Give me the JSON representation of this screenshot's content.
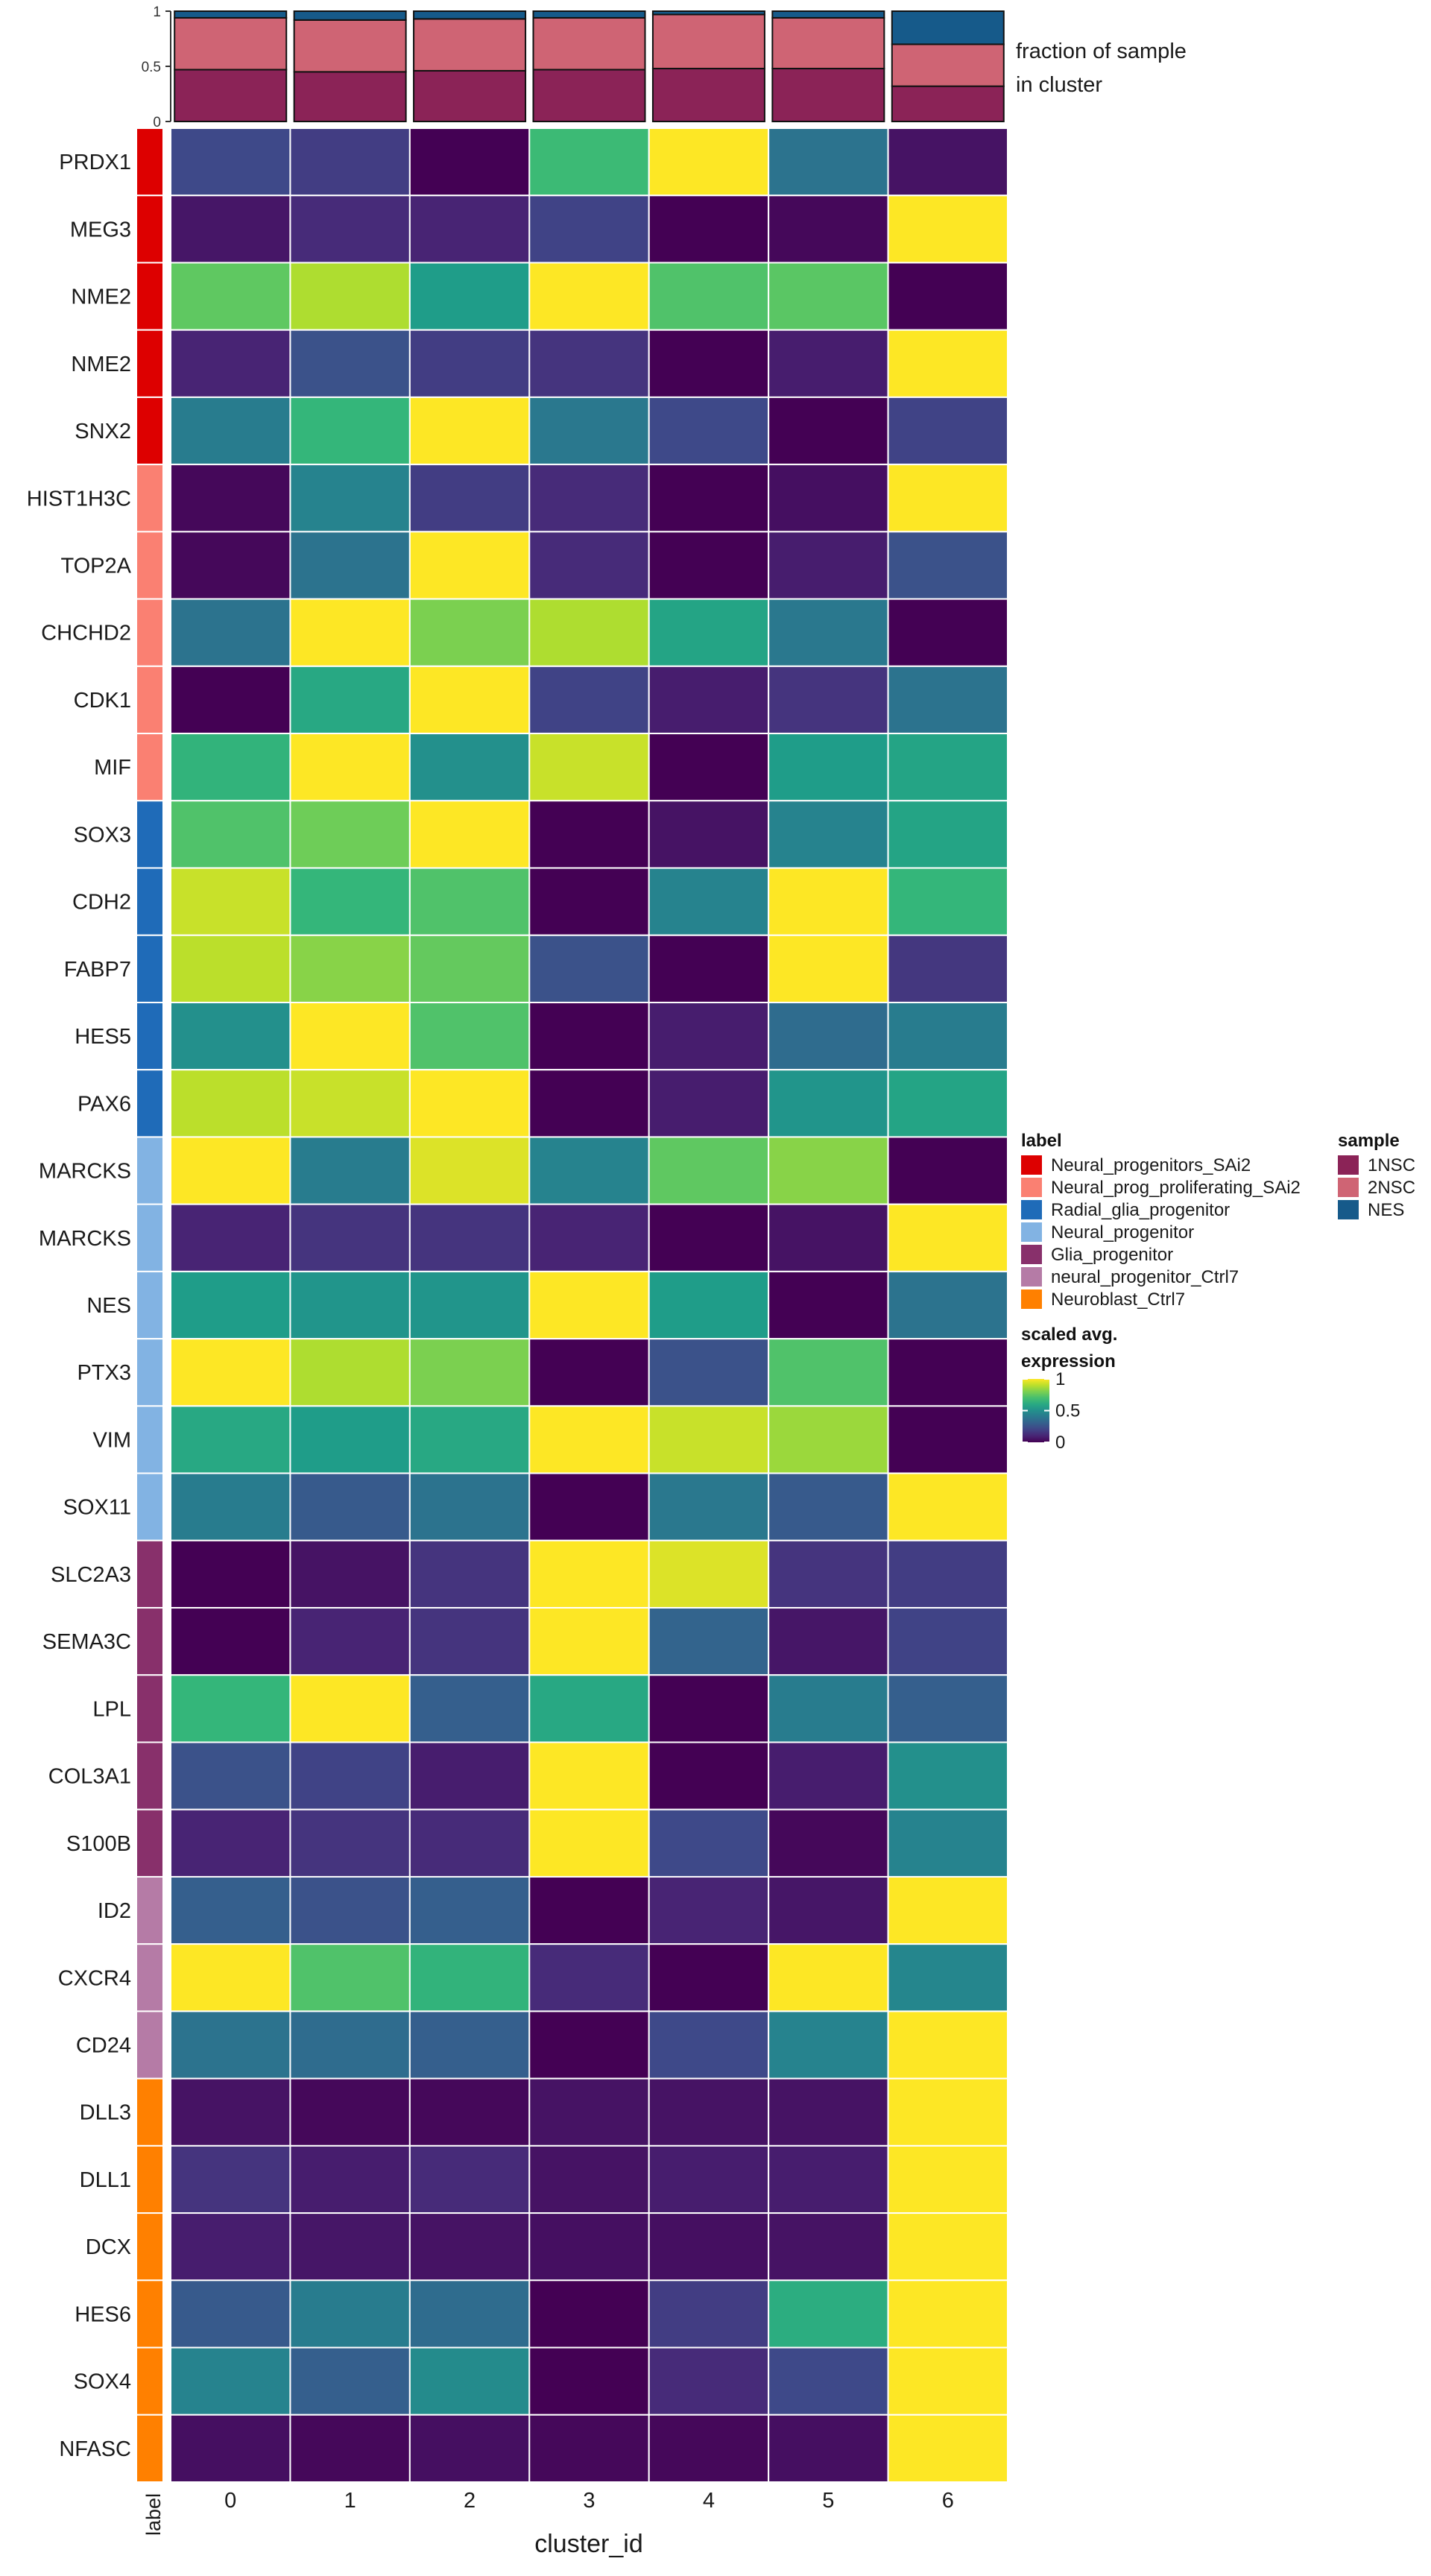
{
  "chart_data": {
    "type": "heatmap",
    "title": "",
    "xlabel": "cluster_id",
    "label_axis_title": "label",
    "clusters": [
      "0",
      "1",
      "2",
      "3",
      "4",
      "5",
      "6"
    ],
    "rows": [
      {
        "gene": "PRDX1",
        "group": 0,
        "values": [
          0.22,
          0.18,
          0.0,
          0.68,
          1.0,
          0.38,
          0.05
        ]
      },
      {
        "gene": "MEG3",
        "group": 0,
        "values": [
          0.06,
          0.12,
          0.1,
          0.2,
          0.0,
          0.02,
          1.0
        ]
      },
      {
        "gene": "NME2",
        "group": 0,
        "values": [
          0.75,
          0.88,
          0.55,
          1.0,
          0.72,
          0.74,
          0.0
        ]
      },
      {
        "gene": "NME2",
        "group": 0,
        "values": [
          0.1,
          0.25,
          0.18,
          0.15,
          0.0,
          0.08,
          1.0
        ]
      },
      {
        "gene": "SNX2",
        "group": 0,
        "values": [
          0.42,
          0.66,
          1.0,
          0.4,
          0.22,
          0.0,
          0.2
        ]
      },
      {
        "gene": "HIST1H3C",
        "group": 1,
        "values": [
          0.02,
          0.45,
          0.18,
          0.12,
          0.0,
          0.04,
          1.0
        ]
      },
      {
        "gene": "TOP2A",
        "group": 1,
        "values": [
          0.02,
          0.38,
          1.0,
          0.12,
          0.0,
          0.08,
          0.25
        ]
      },
      {
        "gene": "CHCHD2",
        "group": 1,
        "values": [
          0.38,
          1.0,
          0.8,
          0.88,
          0.58,
          0.4,
          0.0
        ]
      },
      {
        "gene": "CDK1",
        "group": 1,
        "values": [
          0.0,
          0.6,
          1.0,
          0.2,
          0.08,
          0.15,
          0.38
        ]
      },
      {
        "gene": "MIF",
        "group": 1,
        "values": [
          0.65,
          1.0,
          0.5,
          0.92,
          0.0,
          0.55,
          0.58
        ]
      },
      {
        "gene": "SOX3",
        "group": 2,
        "values": [
          0.72,
          0.78,
          1.0,
          0.0,
          0.05,
          0.45,
          0.58
        ]
      },
      {
        "gene": "CDH2",
        "group": 2,
        "values": [
          0.92,
          0.66,
          0.72,
          0.0,
          0.45,
          1.0,
          0.66
        ]
      },
      {
        "gene": "FABP7",
        "group": 2,
        "values": [
          0.9,
          0.82,
          0.76,
          0.25,
          0.0,
          1.0,
          0.16
        ]
      },
      {
        "gene": "HES5",
        "group": 2,
        "values": [
          0.5,
          1.0,
          0.72,
          0.0,
          0.08,
          0.35,
          0.42
        ]
      },
      {
        "gene": "PAX6",
        "group": 2,
        "values": [
          0.9,
          0.92,
          1.0,
          0.0,
          0.08,
          0.52,
          0.58
        ]
      },
      {
        "gene": "MARCKS",
        "group": 3,
        "values": [
          1.0,
          0.42,
          0.95,
          0.45,
          0.75,
          0.82,
          0.0
        ]
      },
      {
        "gene": "MARCKS",
        "group": 3,
        "values": [
          0.1,
          0.15,
          0.15,
          0.1,
          0.0,
          0.05,
          1.0
        ]
      },
      {
        "gene": "NES",
        "group": 3,
        "values": [
          0.55,
          0.52,
          0.52,
          1.0,
          0.55,
          0.0,
          0.38
        ]
      },
      {
        "gene": "PTX3",
        "group": 3,
        "values": [
          1.0,
          0.88,
          0.8,
          0.0,
          0.25,
          0.72,
          0.0
        ]
      },
      {
        "gene": "VIM",
        "group": 3,
        "values": [
          0.6,
          0.55,
          0.6,
          1.0,
          0.92,
          0.85,
          0.0
        ]
      },
      {
        "gene": "SOX11",
        "group": 3,
        "values": [
          0.42,
          0.28,
          0.38,
          0.0,
          0.4,
          0.28,
          1.0
        ]
      },
      {
        "gene": "SLC2A3",
        "group": 4,
        "values": [
          0.0,
          0.05,
          0.15,
          1.0,
          0.95,
          0.15,
          0.18
        ]
      },
      {
        "gene": "SEMA3C",
        "group": 4,
        "values": [
          0.0,
          0.1,
          0.15,
          1.0,
          0.32,
          0.06,
          0.2
        ]
      },
      {
        "gene": "LPL",
        "group": 4,
        "values": [
          0.66,
          1.0,
          0.3,
          0.6,
          0.0,
          0.42,
          0.3
        ]
      },
      {
        "gene": "COL3A1",
        "group": 4,
        "values": [
          0.25,
          0.2,
          0.08,
          1.0,
          0.0,
          0.08,
          0.5
        ]
      },
      {
        "gene": "S100B",
        "group": 4,
        "values": [
          0.1,
          0.15,
          0.12,
          1.0,
          0.22,
          0.02,
          0.45
        ]
      },
      {
        "gene": "ID2",
        "group": 5,
        "values": [
          0.3,
          0.25,
          0.3,
          0.0,
          0.1,
          0.06,
          1.0
        ]
      },
      {
        "gene": "CXCR4",
        "group": 5,
        "values": [
          1.0,
          0.72,
          0.65,
          0.12,
          0.0,
          1.0,
          0.46
        ]
      },
      {
        "gene": "CD24",
        "group": 5,
        "values": [
          0.38,
          0.35,
          0.3,
          0.0,
          0.22,
          0.45,
          1.0
        ]
      },
      {
        "gene": "DLL3",
        "group": 6,
        "values": [
          0.05,
          0.02,
          0.02,
          0.05,
          0.05,
          0.05,
          1.0
        ]
      },
      {
        "gene": "DLL1",
        "group": 6,
        "values": [
          0.15,
          0.08,
          0.12,
          0.05,
          0.08,
          0.08,
          1.0
        ]
      },
      {
        "gene": "DCX",
        "group": 6,
        "values": [
          0.08,
          0.06,
          0.05,
          0.04,
          0.04,
          0.05,
          1.0
        ]
      },
      {
        "gene": "HES6",
        "group": 6,
        "values": [
          0.28,
          0.42,
          0.35,
          0.0,
          0.18,
          0.62,
          1.0
        ]
      },
      {
        "gene": "SOX4",
        "group": 6,
        "values": [
          0.45,
          0.3,
          0.48,
          0.0,
          0.12,
          0.22,
          1.0
        ]
      },
      {
        "gene": "NFASC",
        "group": 6,
        "values": [
          0.04,
          0.02,
          0.04,
          0.02,
          0.02,
          0.04,
          1.0
        ]
      }
    ],
    "label_legend": {
      "title": "label",
      "entries": [
        {
          "name": "Neural_progenitors_SAi2",
          "color": "#dd0000"
        },
        {
          "name": "Neural_prog_proliferating_SAi2",
          "color": "#fa8072"
        },
        {
          "name": "Radial_glia_progenitor",
          "color": "#1f6bb8"
        },
        {
          "name": "Neural_progenitor",
          "color": "#82b3e3"
        },
        {
          "name": "Glia_progenitor",
          "color": "#88306b"
        },
        {
          "name": "neural_progenitor_Ctrl7",
          "color": "#b57ba6"
        },
        {
          "name": "Neuroblast_Ctrl7",
          "color": "#ff8000"
        }
      ]
    },
    "sample_legend": {
      "title": "sample",
      "entries": [
        {
          "name": "1NSC",
          "color": "#8b2357"
        },
        {
          "name": "2NSC",
          "color": "#cf6474"
        },
        {
          "name": "NES",
          "color": "#165a8a"
        }
      ]
    },
    "fraction_plot": {
      "label": "fraction of sample\nin cluster",
      "yticks": [
        "0",
        "0.5",
        "1"
      ],
      "ylim": [
        0,
        1
      ],
      "bars": [
        {
          "cluster": "0",
          "1NSC": 0.47,
          "2NSC": 0.47,
          "NES": 0.06
        },
        {
          "cluster": "1",
          "1NSC": 0.45,
          "2NSC": 0.47,
          "NES": 0.08
        },
        {
          "cluster": "2",
          "1NSC": 0.46,
          "2NSC": 0.47,
          "NES": 0.07
        },
        {
          "cluster": "3",
          "1NSC": 0.47,
          "2NSC": 0.47,
          "NES": 0.06
        },
        {
          "cluster": "4",
          "1NSC": 0.48,
          "2NSC": 0.49,
          "NES": 0.03
        },
        {
          "cluster": "5",
          "1NSC": 0.48,
          "2NSC": 0.46,
          "NES": 0.06
        },
        {
          "cluster": "6",
          "1NSC": 0.32,
          "2NSC": 0.38,
          "NES": 0.3
        }
      ]
    },
    "colorbar": {
      "title": "scaled avg.\nexpression",
      "ticks": [
        "1",
        "0.5",
        "0"
      ],
      "range": [
        0,
        1
      ],
      "colormap": "viridis"
    }
  }
}
